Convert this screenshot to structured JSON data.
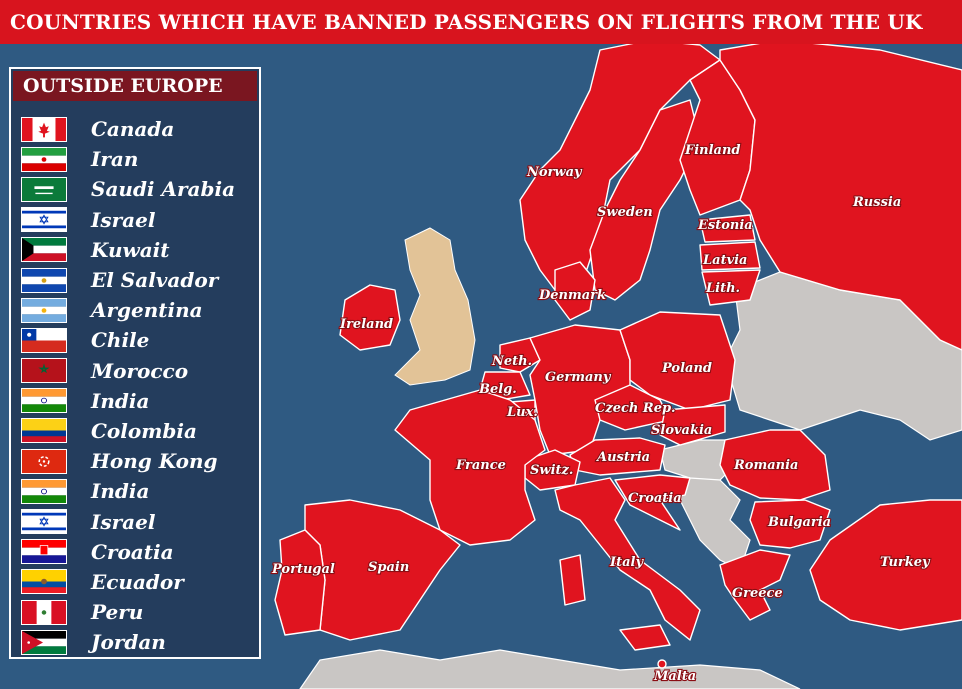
{
  "title": "COUNTRIES WHICH HAVE BANNED PASSENGERS ON FLIGHTS FROM THE UK",
  "colors": {
    "banned": "#e0141f",
    "uk": "#e2c397",
    "other_land": "#c9c6c4",
    "sea": "#2f5a82",
    "title_bar": "#d8141e",
    "legend_bg": "#243d5d",
    "legend_header": "#7a1620"
  },
  "legend": {
    "header": "OUTSIDE EUROPE",
    "items": [
      {
        "name": "Canada",
        "flag": "canada-flag-icon"
      },
      {
        "name": "Iran",
        "flag": "iran-flag-icon"
      },
      {
        "name": "Saudi Arabia",
        "flag": "saudi-arabia-flag-icon"
      },
      {
        "name": "Israel",
        "flag": "israel-flag-icon"
      },
      {
        "name": "Kuwait",
        "flag": "kuwait-flag-icon"
      },
      {
        "name": "El Salvador",
        "flag": "el-salvador-flag-icon"
      },
      {
        "name": "Argentina",
        "flag": "argentina-flag-icon"
      },
      {
        "name": "Chile",
        "flag": "chile-flag-icon"
      },
      {
        "name": "Morocco",
        "flag": "morocco-flag-icon"
      },
      {
        "name": "India",
        "flag": "india-flag-icon"
      },
      {
        "name": "Colombia",
        "flag": "colombia-flag-icon"
      },
      {
        "name": "Hong Kong",
        "flag": "hong-kong-flag-icon"
      },
      {
        "name": "India",
        "flag": "india-flag-icon"
      },
      {
        "name": "Israel",
        "flag": "israel-flag-icon"
      },
      {
        "name": "Croatia",
        "flag": "croatia-flag-icon"
      },
      {
        "name": "Ecuador",
        "flag": "ecuador-flag-icon"
      },
      {
        "name": "Peru",
        "flag": "peru-flag-icon"
      },
      {
        "name": "Jordan",
        "flag": "jordan-flag-icon"
      }
    ]
  },
  "map": {
    "labels": {
      "norway": "Norway",
      "sweden": "Sweden",
      "finland": "Finland",
      "russia": "Russia",
      "estonia": "Estonia",
      "latvia": "Latvia",
      "lith": "Lith.",
      "denmark": "Denmark",
      "ireland": "Ireland",
      "neth": "Neth.",
      "belg": "Belg.",
      "lux": "Lux.",
      "germany": "Germany",
      "poland": "Poland",
      "czech": "Czech Rep.",
      "slovakia": "Slovakia",
      "austria": "Austria",
      "switz": "Switz.",
      "france": "France",
      "romania": "Romania",
      "croatia": "Croatia",
      "bulgaria": "Bulgaria",
      "portugal": "Portugal",
      "spain": "Spain",
      "italy": "Italy",
      "turkey": "Turkey",
      "greece": "Greece",
      "malta": "Malta"
    }
  }
}
